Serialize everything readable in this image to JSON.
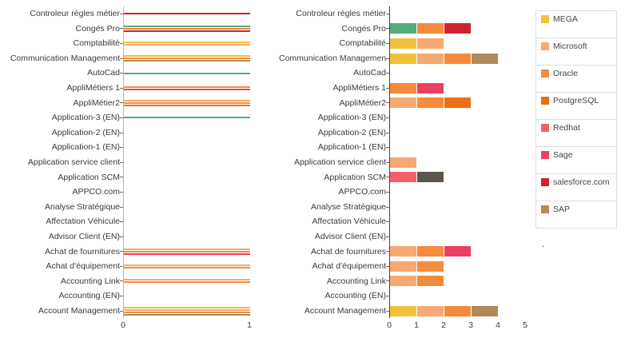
{
  "colors": {
    "MEGA": "#f0c23c",
    "Microsoft": "#f8a871",
    "Oracle": "#f68b3b",
    "PostgreSQL": "#eb7014",
    "Redhat": "#f45f6a",
    "Sage": "#ee3f63",
    "salesforce.com": "#cf2233",
    "SAP": "#b08a5a",
    "green": "#4fae7e",
    "dark": "#5b554c"
  },
  "legend": {
    "items": [
      "MEGA",
      "Microsoft",
      "Oracle",
      "PostgreSQL",
      "Redhat",
      "Sage",
      "salesforce.com",
      "SAP"
    ],
    "more_indicator": "."
  },
  "chart_data": [
    {
      "type": "bar",
      "variant": "overlay-lines",
      "orientation": "horizontal",
      "title": "",
      "xlabel": "",
      "ylabel": "",
      "xlim": [
        0,
        1
      ],
      "x_ticks": [
        0,
        1
      ],
      "grid": false,
      "rows": [
        {
          "category": "Controleur règles métier",
          "lines": [
            "salesforce.com"
          ]
        },
        {
          "category": "Congés Pro",
          "lines": [
            "green",
            "Oracle",
            "salesforce.com"
          ]
        },
        {
          "category": "Comptabilité",
          "lines": [
            "MEGA",
            "Microsoft"
          ]
        },
        {
          "category": "Communication Management",
          "lines": [
            "MEGA",
            "Oracle",
            "SAP"
          ]
        },
        {
          "category": "AutoCad",
          "lines": [
            "green"
          ]
        },
        {
          "category": "AppliMétiers 1",
          "lines": [
            "Oracle",
            "Sage"
          ]
        },
        {
          "category": "AppliMétier2",
          "lines": [
            "Microsoft",
            "Oracle",
            "PostgreSQL"
          ]
        },
        {
          "category": "Application-3 (EN)",
          "lines": [
            "green"
          ]
        },
        {
          "category": "Application-2 (EN)",
          "lines": []
        },
        {
          "category": "Application-1 (EN)",
          "lines": []
        },
        {
          "category": "Application service client",
          "lines": []
        },
        {
          "category": "Application SCM",
          "lines": []
        },
        {
          "category": "APPCO.com",
          "lines": []
        },
        {
          "category": "Analyse Stratégique",
          "lines": []
        },
        {
          "category": "Affectation Véhicule",
          "lines": []
        },
        {
          "category": "Advisor Client (EN)",
          "lines": []
        },
        {
          "category": "Achat de fournitures",
          "lines": [
            "Microsoft",
            "Oracle",
            "Sage"
          ]
        },
        {
          "category": "Achat d'équipement",
          "lines": [
            "Microsoft",
            "Oracle"
          ]
        },
        {
          "category": "Accounting Link",
          "lines": [
            "Microsoft",
            "Oracle"
          ]
        },
        {
          "category": "Accounting (EN)",
          "lines": []
        },
        {
          "category": "Account Management",
          "lines": [
            "MEGA",
            "Microsoft",
            "Oracle",
            "SAP"
          ]
        }
      ]
    },
    {
      "type": "bar",
      "variant": "stacked",
      "orientation": "horizontal",
      "title": "",
      "xlabel": "",
      "ylabel": "",
      "xlim": [
        0,
        5
      ],
      "x_ticks": [
        0,
        1,
        2,
        3,
        4,
        5
      ],
      "grid": false,
      "rows": [
        {
          "category": "Controleur règles métier",
          "segments": []
        },
        {
          "category": "Congés Pro",
          "segments": [
            {
              "series": "green",
              "value": 1
            },
            {
              "series": "Oracle",
              "value": 1
            },
            {
              "series": "salesforce.com",
              "value": 1
            }
          ]
        },
        {
          "category": "Comptabilité",
          "segments": [
            {
              "series": "MEGA",
              "value": 1
            },
            {
              "series": "Microsoft",
              "value": 1
            }
          ]
        },
        {
          "category": "Communication Management",
          "segments": [
            {
              "series": "MEGA",
              "value": 1
            },
            {
              "series": "Microsoft",
              "value": 1
            },
            {
              "series": "Oracle",
              "value": 1
            },
            {
              "series": "SAP",
              "value": 1
            }
          ]
        },
        {
          "category": "AutoCad",
          "segments": []
        },
        {
          "category": "AppliMétiers 1",
          "segments": [
            {
              "series": "Oracle",
              "value": 1
            },
            {
              "series": "Sage",
              "value": 1
            }
          ]
        },
        {
          "category": "AppliMétier2",
          "segments": [
            {
              "series": "Microsoft",
              "value": 1
            },
            {
              "series": "Oracle",
              "value": 1
            },
            {
              "series": "PostgreSQL",
              "value": 1
            }
          ]
        },
        {
          "category": "Application-3 (EN)",
          "segments": []
        },
        {
          "category": "Application-2 (EN)",
          "segments": []
        },
        {
          "category": "Application-1 (EN)",
          "segments": []
        },
        {
          "category": "Application service client",
          "segments": [
            {
              "series": "Microsoft",
              "value": 1
            }
          ]
        },
        {
          "category": "Application SCM",
          "segments": [
            {
              "series": "Redhat",
              "value": 1
            },
            {
              "series": "dark",
              "value": 1
            }
          ]
        },
        {
          "category": "APPCO.com",
          "segments": []
        },
        {
          "category": "Analyse Stratégique",
          "segments": []
        },
        {
          "category": "Affectation Véhicule",
          "segments": []
        },
        {
          "category": "Advisor Client (EN)",
          "segments": []
        },
        {
          "category": "Achat de fournitures",
          "segments": [
            {
              "series": "Microsoft",
              "value": 1
            },
            {
              "series": "Oracle",
              "value": 1
            },
            {
              "series": "Sage",
              "value": 1
            }
          ]
        },
        {
          "category": "Achat d'équipement",
          "segments": [
            {
              "series": "Microsoft",
              "value": 1
            },
            {
              "series": "Oracle",
              "value": 1
            }
          ]
        },
        {
          "category": "Accounting Link",
          "segments": [
            {
              "series": "Microsoft",
              "value": 1
            },
            {
              "series": "Oracle",
              "value": 1
            }
          ]
        },
        {
          "category": "Accounting (EN)",
          "segments": []
        },
        {
          "category": "Account Management",
          "segments": [
            {
              "series": "MEGA",
              "value": 1
            },
            {
              "series": "Microsoft",
              "value": 1
            },
            {
              "series": "Oracle",
              "value": 1
            },
            {
              "series": "SAP",
              "value": 1
            }
          ]
        }
      ]
    }
  ]
}
